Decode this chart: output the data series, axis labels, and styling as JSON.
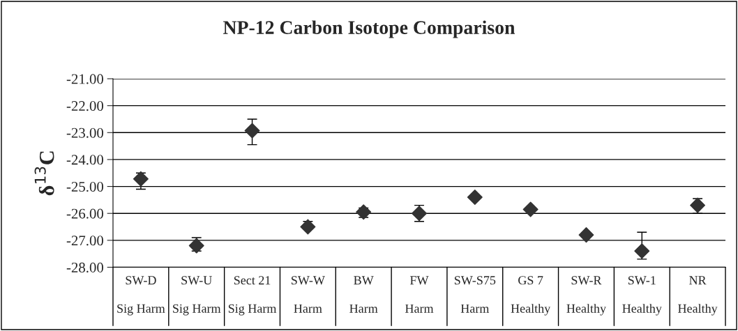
{
  "chart_data": {
    "type": "scatter",
    "title": "NP-12 Carbon Isotope Comparison",
    "ylabel": "δ$^{13}$C",
    "categories": [
      "SW-D\nSig Harm",
      "SW-U\nSig Harm",
      "Sect 21\nSig Harm",
      "SW-W\nHarm",
      "BW\nHarm",
      "FW\nHarm",
      "SW-S75\nHarm",
      "GS 7\nHealthy",
      "SW-R\nHealthy",
      "SW-1\nHealthy",
      "NR\nHealthy"
    ],
    "series": [
      {
        "color": "#333333",
        "values": [
          -24.72,
          -27.2,
          -22.93,
          -26.5,
          -25.95,
          -26.0,
          -25.4,
          -25.85,
          -26.8,
          -27.4,
          -25.7
        ],
        "errors": [
          [
            -25.1,
            -24.5
          ],
          [
            -27.4,
            -26.9
          ],
          [
            -23.45,
            -22.5
          ],
          [
            -26.5,
            -26.3
          ],
          [
            -26.15,
            -25.8
          ],
          [
            -26.3,
            -25.7
          ],
          null,
          null,
          null,
          [
            -27.7,
            -26.7
          ],
          [
            -26.0,
            -25.45
          ]
        ]
      }
    ],
    "ylim": [
      -28,
      -21
    ],
    "yticks": [
      {
        "value": -28,
        "label": "-28.00"
      },
      {
        "value": -27,
        "label": "-27.00"
      },
      {
        "value": -26,
        "label": "-26.00"
      },
      {
        "value": -25,
        "label": "-25.00"
      },
      {
        "value": -24,
        "label": "-24.00"
      },
      {
        "value": -23,
        "label": "-23.00"
      },
      {
        "value": -22,
        "label": "-22.00"
      },
      {
        "value": -21,
        "label": "-21.00"
      }
    ],
    "grid": "y",
    "marker": "diamond",
    "legend": false
  }
}
